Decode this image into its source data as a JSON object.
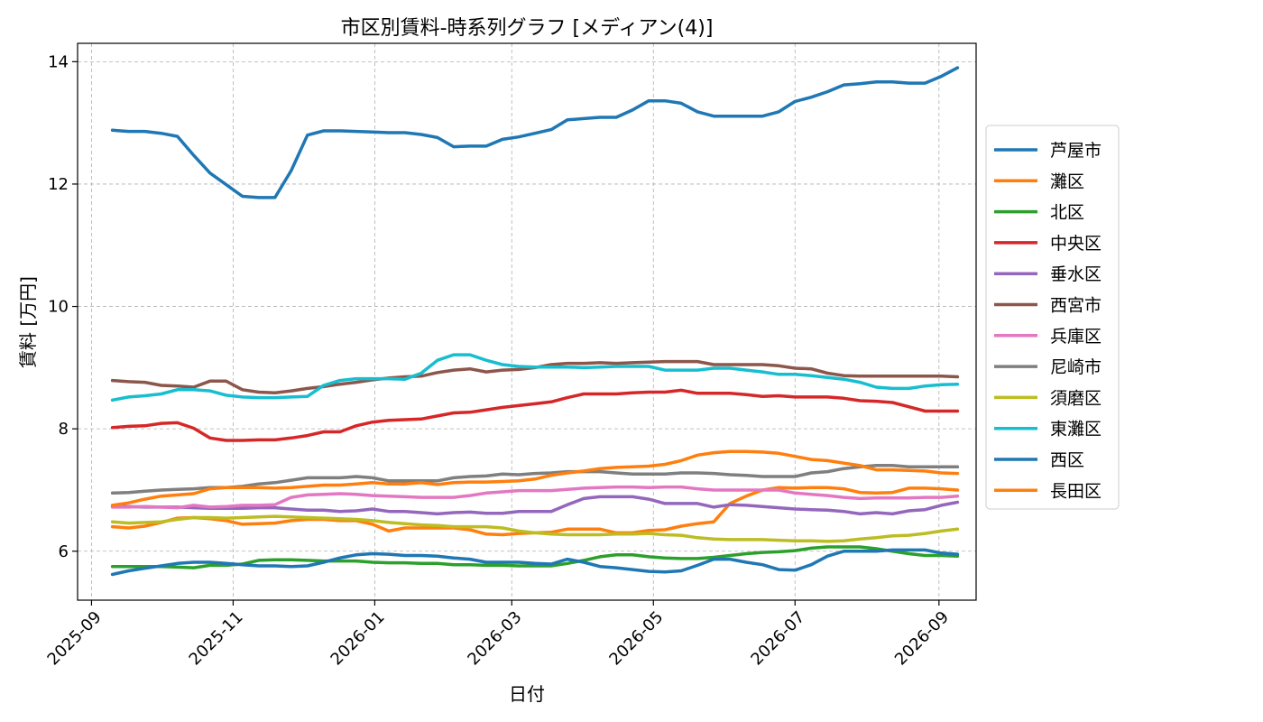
{
  "chart_data": {
    "type": "line",
    "title": "市区別賃料-時系列グラフ [メディアン(4)]",
    "xlabel": "日付",
    "ylabel": "賃料 [万円]",
    "ylim": [
      5.2,
      14.3
    ],
    "yticks": [
      6,
      8,
      10,
      12,
      14
    ],
    "xlim": [
      "2025-08-26",
      "2026-09-17"
    ],
    "xticks": [
      "2025-09",
      "2025-11",
      "2026-01",
      "2026-03",
      "2026-05",
      "2026-07",
      "2026-09"
    ],
    "grid": true,
    "legend_position": "right-outside",
    "x": [
      "2025-09-10",
      "2025-09-17",
      "2025-09-24",
      "2025-10-01",
      "2025-10-08",
      "2025-10-15",
      "2025-10-22",
      "2025-10-29",
      "2025-11-05",
      "2025-11-12",
      "2025-11-19",
      "2025-11-26",
      "2025-12-03",
      "2025-12-10",
      "2025-12-17",
      "2025-12-24",
      "2025-12-31",
      "2026-01-07",
      "2026-01-14",
      "2026-01-21",
      "2026-01-28",
      "2026-02-04",
      "2026-02-11",
      "2026-02-18",
      "2026-02-25",
      "2026-03-04",
      "2026-03-11",
      "2026-03-18",
      "2026-03-25",
      "2026-04-01",
      "2026-04-08",
      "2026-04-15",
      "2026-04-22",
      "2026-04-29",
      "2026-05-06",
      "2026-05-13",
      "2026-05-20",
      "2026-05-27",
      "2026-06-03",
      "2026-06-10",
      "2026-06-17",
      "2026-06-24",
      "2026-07-01",
      "2026-07-08",
      "2026-07-15",
      "2026-07-22",
      "2026-07-29",
      "2026-08-05",
      "2026-08-12",
      "2026-08-19",
      "2026-08-26",
      "2026-09-02",
      "2026-09-09"
    ],
    "series": [
      {
        "name": "芦屋市",
        "color": "#1f77b4",
        "values": [
          12.88,
          12.86,
          12.86,
          12.83,
          12.78,
          12.47,
          12.18,
          11.99,
          11.8,
          11.78,
          11.78,
          12.22,
          12.8,
          12.87,
          12.87,
          12.86,
          12.85,
          12.84,
          12.84,
          12.81,
          12.76,
          12.61,
          12.62,
          12.62,
          12.73,
          12.77,
          12.83,
          12.89,
          13.05,
          13.07,
          13.09,
          13.09,
          13.21,
          13.36,
          13.36,
          13.32,
          13.18,
          13.11,
          13.11,
          13.11,
          13.11,
          13.18,
          13.35,
          13.42,
          13.51,
          13.62,
          13.64,
          13.67,
          13.67,
          13.65,
          13.65,
          13.76,
          13.9
        ]
      },
      {
        "name": "灘区",
        "color": "#ff7f0e",
        "values": [
          6.4,
          6.38,
          6.41,
          6.47,
          6.54,
          6.55,
          6.53,
          6.5,
          6.44,
          6.45,
          6.46,
          6.5,
          6.52,
          6.52,
          6.5,
          6.5,
          6.44,
          6.33,
          6.38,
          6.38,
          6.38,
          6.38,
          6.35,
          6.28,
          6.27,
          6.29,
          6.3,
          6.31,
          6.36,
          6.36,
          6.36,
          6.3,
          6.3,
          6.34,
          6.35,
          6.41,
          6.45,
          6.48,
          6.78,
          6.9,
          7.0,
          7.04,
          7.03,
          7.04,
          7.04,
          7.02,
          6.96,
          6.95,
          6.96,
          7.03,
          7.03,
          7.02,
          7.0
        ]
      },
      {
        "name": "北区",
        "color": "#2ca02c",
        "values": [
          5.75,
          5.75,
          5.75,
          5.75,
          5.74,
          5.73,
          5.77,
          5.77,
          5.79,
          5.85,
          5.86,
          5.86,
          5.85,
          5.84,
          5.84,
          5.84,
          5.82,
          5.81,
          5.81,
          5.8,
          5.8,
          5.78,
          5.78,
          5.77,
          5.77,
          5.76,
          5.76,
          5.76,
          5.8,
          5.85,
          5.91,
          5.94,
          5.94,
          5.91,
          5.89,
          5.88,
          5.88,
          5.9,
          5.93,
          5.96,
          5.98,
          5.99,
          6.01,
          6.05,
          6.07,
          6.07,
          6.07,
          6.04,
          6.0,
          5.96,
          5.93,
          5.93,
          5.92
        ]
      },
      {
        "name": "中央区",
        "color": "#d62728",
        "values": [
          8.02,
          8.04,
          8.05,
          8.09,
          8.1,
          8.01,
          7.85,
          7.81,
          7.81,
          7.82,
          7.82,
          7.85,
          7.89,
          7.95,
          7.95,
          8.05,
          8.11,
          8.14,
          8.15,
          8.16,
          8.21,
          8.26,
          8.27,
          8.31,
          8.35,
          8.38,
          8.41,
          8.44,
          8.51,
          8.57,
          8.57,
          8.57,
          8.59,
          8.6,
          8.6,
          8.63,
          8.58,
          8.58,
          8.58,
          8.56,
          8.53,
          8.54,
          8.52,
          8.52,
          8.52,
          8.5,
          8.46,
          8.45,
          8.43,
          8.36,
          8.29,
          8.29,
          8.29
        ]
      },
      {
        "name": "垂水区",
        "color": "#9467bd",
        "values": [
          6.73,
          6.73,
          6.72,
          6.72,
          6.72,
          6.71,
          6.7,
          6.7,
          6.7,
          6.71,
          6.71,
          6.69,
          6.67,
          6.67,
          6.65,
          6.66,
          6.69,
          6.65,
          6.65,
          6.63,
          6.61,
          6.63,
          6.64,
          6.62,
          6.62,
          6.65,
          6.65,
          6.65,
          6.76,
          6.86,
          6.89,
          6.89,
          6.89,
          6.85,
          6.78,
          6.78,
          6.78,
          6.72,
          6.76,
          6.75,
          6.73,
          6.71,
          6.69,
          6.68,
          6.67,
          6.65,
          6.61,
          6.63,
          6.61,
          6.66,
          6.68,
          6.75,
          6.8
        ]
      },
      {
        "name": "西宮市",
        "color": "#8c564b",
        "values": [
          8.79,
          8.77,
          8.76,
          8.71,
          8.7,
          8.68,
          8.78,
          8.78,
          8.64,
          8.6,
          8.59,
          8.62,
          8.66,
          8.69,
          8.73,
          8.76,
          8.8,
          8.83,
          8.85,
          8.86,
          8.92,
          8.96,
          8.98,
          8.93,
          8.96,
          8.97,
          9.0,
          9.05,
          9.07,
          9.07,
          9.08,
          9.07,
          9.08,
          9.09,
          9.1,
          9.1,
          9.1,
          9.05,
          9.05,
          9.05,
          9.05,
          9.03,
          8.99,
          8.98,
          8.91,
          8.87,
          8.86,
          8.86,
          8.86,
          8.86,
          8.86,
          8.86,
          8.85
        ]
      },
      {
        "name": "兵庫区",
        "color": "#e377c2",
        "values": [
          6.72,
          6.72,
          6.73,
          6.72,
          6.71,
          6.75,
          6.72,
          6.73,
          6.75,
          6.75,
          6.76,
          6.88,
          6.92,
          6.93,
          6.94,
          6.93,
          6.91,
          6.9,
          6.89,
          6.88,
          6.88,
          6.88,
          6.91,
          6.95,
          6.97,
          6.99,
          6.99,
          6.99,
          7.01,
          7.03,
          7.04,
          7.05,
          7.05,
          7.04,
          7.05,
          7.05,
          7.02,
          7.0,
          7.0,
          7.0,
          7.0,
          7.0,
          6.95,
          6.93,
          6.91,
          6.88,
          6.86,
          6.87,
          6.87,
          6.87,
          6.88,
          6.88,
          6.9
        ]
      },
      {
        "name": "尼崎市",
        "color": "#7f7f7f",
        "values": [
          6.95,
          6.96,
          6.98,
          7.0,
          7.01,
          7.02,
          7.04,
          7.04,
          7.06,
          7.1,
          7.12,
          7.16,
          7.2,
          7.2,
          7.2,
          7.22,
          7.2,
          7.15,
          7.15,
          7.15,
          7.15,
          7.2,
          7.22,
          7.23,
          7.26,
          7.25,
          7.27,
          7.28,
          7.3,
          7.3,
          7.3,
          7.28,
          7.26,
          7.26,
          7.26,
          7.28,
          7.28,
          7.27,
          7.25,
          7.24,
          7.22,
          7.22,
          7.22,
          7.28,
          7.3,
          7.35,
          7.38,
          7.4,
          7.4,
          7.38,
          7.38,
          7.38,
          7.38
        ]
      },
      {
        "name": "須磨区",
        "color": "#bcbd22",
        "values": [
          6.48,
          6.46,
          6.47,
          6.48,
          6.52,
          6.55,
          6.55,
          6.54,
          6.55,
          6.56,
          6.57,
          6.56,
          6.55,
          6.54,
          6.53,
          6.52,
          6.5,
          6.47,
          6.45,
          6.43,
          6.42,
          6.4,
          6.4,
          6.4,
          6.38,
          6.33,
          6.3,
          6.28,
          6.27,
          6.27,
          6.27,
          6.28,
          6.28,
          6.29,
          6.27,
          6.26,
          6.22,
          6.2,
          6.19,
          6.19,
          6.19,
          6.18,
          6.17,
          6.17,
          6.16,
          6.17,
          6.2,
          6.22,
          6.25,
          6.26,
          6.29,
          6.33,
          6.36
        ]
      },
      {
        "name": "東灘区",
        "color": "#17becf",
        "values": [
          8.47,
          8.52,
          8.54,
          8.57,
          8.64,
          8.64,
          8.62,
          8.55,
          8.52,
          8.51,
          8.51,
          8.52,
          8.53,
          8.71,
          8.79,
          8.82,
          8.82,
          8.82,
          8.81,
          8.91,
          9.12,
          9.21,
          9.21,
          9.12,
          9.05,
          9.02,
          9.01,
          9.01,
          9.01,
          9.0,
          9.01,
          9.02,
          9.02,
          9.02,
          8.96,
          8.96,
          8.96,
          8.99,
          8.99,
          8.96,
          8.93,
          8.89,
          8.89,
          8.87,
          8.84,
          8.81,
          8.76,
          8.68,
          8.66,
          8.66,
          8.7,
          8.72,
          8.73
        ]
      },
      {
        "name": "西区",
        "color": "#1f77b4",
        "values": [
          5.62,
          5.68,
          5.72,
          5.76,
          5.8,
          5.82,
          5.82,
          5.8,
          5.78,
          5.76,
          5.76,
          5.75,
          5.76,
          5.82,
          5.89,
          5.94,
          5.96,
          5.95,
          5.93,
          5.93,
          5.92,
          5.89,
          5.87,
          5.82,
          5.82,
          5.82,
          5.8,
          5.79,
          5.87,
          5.82,
          5.75,
          5.73,
          5.7,
          5.67,
          5.66,
          5.68,
          5.77,
          5.87,
          5.87,
          5.82,
          5.78,
          5.7,
          5.69,
          5.78,
          5.92,
          6.0,
          6.0,
          6.0,
          6.02,
          6.02,
          6.02,
          5.97,
          5.95
        ]
      },
      {
        "name": "長田区",
        "color": "#ff7f0e",
        "values": [
          6.75,
          6.79,
          6.85,
          6.9,
          6.92,
          6.94,
          7.02,
          7.04,
          7.04,
          7.04,
          7.03,
          7.04,
          7.06,
          7.08,
          7.08,
          7.1,
          7.12,
          7.1,
          7.1,
          7.12,
          7.09,
          7.12,
          7.13,
          7.13,
          7.14,
          7.15,
          7.18,
          7.24,
          7.28,
          7.31,
          7.35,
          7.37,
          7.38,
          7.39,
          7.42,
          7.48,
          7.57,
          7.61,
          7.63,
          7.63,
          7.62,
          7.6,
          7.55,
          7.5,
          7.48,
          7.44,
          7.4,
          7.33,
          7.33,
          7.32,
          7.31,
          7.28,
          7.27
        ]
      }
    ]
  }
}
